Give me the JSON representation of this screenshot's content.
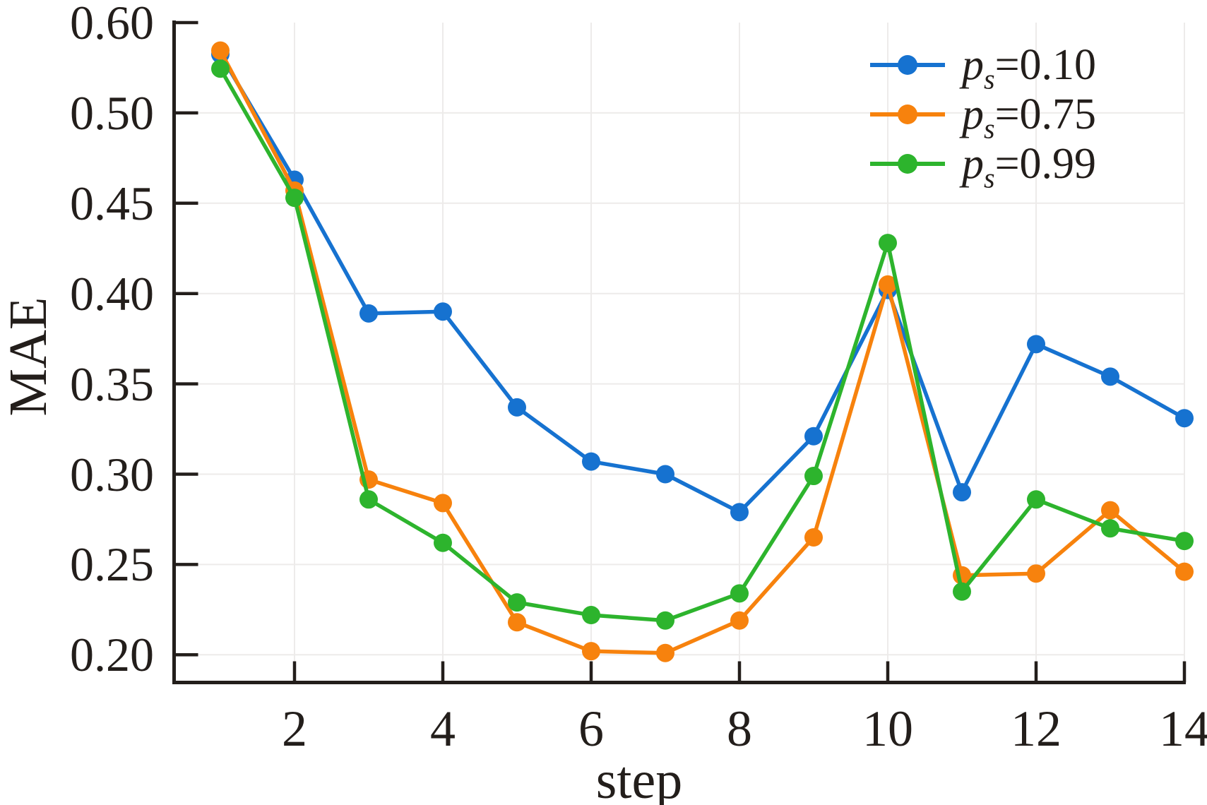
{
  "chart_data": {
    "type": "line",
    "title": "",
    "xlabel": "step",
    "ylabel": "MAE",
    "x": [
      1,
      2,
      3,
      4,
      5,
      6,
      7,
      8,
      9,
      10,
      11,
      12,
      13,
      14
    ],
    "x_tick_labels": [
      "2",
      "4",
      "6",
      "8",
      "10",
      "12",
      "14"
    ],
    "x_tick_values": [
      2,
      4,
      6,
      8,
      10,
      12,
      14
    ],
    "y_tick_labels": [
      "0.60",
      "0.50",
      "0.45",
      "0.40",
      "0.35",
      "0.30",
      "0.25",
      "0.20"
    ],
    "y_tick_values": [
      0.6,
      0.5,
      0.45,
      0.4,
      0.35,
      0.3,
      0.25,
      0.2
    ],
    "y_axis_note": "tick marks evenly spaced in pixels although label values are non-linear, as in source figure",
    "grid": true,
    "legend_position": "upper right",
    "series": [
      {
        "name": "ps=0.10",
        "color": "#1672d0",
        "values": [
          0.565,
          0.463,
          0.389,
          0.39,
          0.337,
          0.307,
          0.3,
          0.279,
          0.321,
          0.402,
          0.29,
          0.372,
          0.354,
          0.331
        ]
      },
      {
        "name": "ps=0.75",
        "color": "#f7820d",
        "values": [
          0.569,
          0.457,
          0.297,
          0.284,
          0.218,
          0.202,
          0.201,
          0.219,
          0.265,
          0.405,
          0.244,
          0.245,
          0.28,
          0.246
        ]
      },
      {
        "name": "ps=0.99",
        "color": "#2db42d",
        "values": [
          0.549,
          0.453,
          0.286,
          0.262,
          0.229,
          0.222,
          0.219,
          0.234,
          0.299,
          0.428,
          0.235,
          0.286,
          0.27,
          0.263
        ]
      }
    ]
  },
  "legend": {
    "entries": [
      {
        "var": "p",
        "sub": "s",
        "rest": "=0.10",
        "color": "#1672d0"
      },
      {
        "var": "p",
        "sub": "s",
        "rest": "=0.75",
        "color": "#f7820d"
      },
      {
        "var": "p",
        "sub": "s",
        "rest": "=0.99",
        "color": "#2db42d"
      }
    ]
  },
  "style": {
    "axis_color": "#231e1b",
    "grid_color": "#edebea",
    "background": "#ffffff"
  }
}
